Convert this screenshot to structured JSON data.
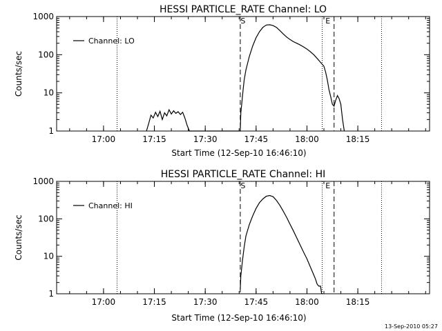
{
  "footer": {
    "timestamp": "13-Sep-2010 05:27"
  },
  "chart_data": [
    {
      "type": "line",
      "title": "HESSI PARTICLE_RATE Channel: LO",
      "xlabel": "Start Time (12-Sep-10 16:46:10)",
      "ylabel": "Counts/sec",
      "yscale": "log",
      "ylim": [
        1,
        1000
      ],
      "xlim_minutes_since_start": [
        0,
        110
      ],
      "xticks": [
        "17:00",
        "17:15",
        "17:30",
        "17:45",
        "18:00",
        "18:15"
      ],
      "yticks": [
        "1",
        "10",
        "100",
        "1000"
      ],
      "legend": {
        "label": "Channel: LO",
        "position": "top-left"
      },
      "markers": [
        {
          "label": "S",
          "time": "17:40:20",
          "style": "dashed"
        },
        {
          "label": "E",
          "time": "18:08:00",
          "style": "dashed"
        }
      ],
      "dotted_lines": [
        "17:04:00",
        "18:04:30",
        "18:22:00"
      ],
      "series": [
        {
          "name": "Channel: LO",
          "x": [
            "17:12:40",
            "17:13:20",
            "17:14:00",
            "17:14:40",
            "17:15:20",
            "17:16:00",
            "17:16:40",
            "17:17:20",
            "17:18:00",
            "17:18:40",
            "17:19:20",
            "17:20:00",
            "17:20:40",
            "17:21:20",
            "17:22:00",
            "17:22:40",
            "17:23:20",
            "17:24:00",
            "17:24:40",
            "17:25:20",
            "17:40:20",
            "17:40:30",
            "17:40:50",
            "17:41:10",
            "17:41:30",
            "17:42:00",
            "17:43:00",
            "17:44:00",
            "17:45:00",
            "17:46:00",
            "17:47:00",
            "17:48:00",
            "17:49:00",
            "17:50:00",
            "17:51:00",
            "17:52:00",
            "17:53:00",
            "17:54:00",
            "17:55:00",
            "17:56:00",
            "17:57:00",
            "17:58:00",
            "17:59:00",
            "18:00:00",
            "18:01:00",
            "18:02:00",
            "18:03:00",
            "18:04:00",
            "18:05:00",
            "18:05:30",
            "18:06:00",
            "18:06:30",
            "18:07:00",
            "18:07:30",
            "18:08:00",
            "18:08:30",
            "18:09:00",
            "18:09:30",
            "18:10:00",
            "18:10:30",
            "18:11:00"
          ],
          "y": [
            1,
            1.6,
            2.6,
            2.2,
            3.1,
            2.4,
            3.3,
            2.0,
            3.0,
            2.5,
            3.6,
            2.8,
            3.4,
            2.9,
            3.2,
            2.7,
            3.1,
            2.2,
            1.4,
            1,
            1,
            3,
            6,
            12,
            22,
            40,
            90,
            170,
            280,
            400,
            520,
            600,
            610,
            580,
            520,
            430,
            350,
            290,
            250,
            220,
            200,
            180,
            160,
            140,
            120,
            100,
            80,
            63,
            50,
            35,
            22,
            12,
            8,
            5,
            4.5,
            6.5,
            8.5,
            7,
            5,
            2,
            1
          ]
        }
      ]
    },
    {
      "type": "line",
      "title": "HESSI PARTICLE_RATE Channel: HI",
      "xlabel": "Start Time (12-Sep-10 16:46:10)",
      "ylabel": "Counts/sec",
      "yscale": "log",
      "ylim": [
        1,
        1000
      ],
      "xlim_minutes_since_start": [
        0,
        110
      ],
      "xticks": [
        "17:00",
        "17:15",
        "17:30",
        "17:45",
        "18:00",
        "18:15"
      ],
      "yticks": [
        "1",
        "10",
        "100",
        "1000"
      ],
      "legend": {
        "label": "Channel: HI",
        "position": "top-left"
      },
      "markers": [
        {
          "label": "S",
          "time": "17:40:20",
          "style": "dashed"
        },
        {
          "label": "E",
          "time": "18:08:00",
          "style": "dashed"
        }
      ],
      "dotted_lines": [
        "17:04:00",
        "18:04:30",
        "18:22:00"
      ],
      "series": [
        {
          "name": "Channel: HI",
          "x": [
            "17:40:20",
            "17:40:30",
            "17:41:00",
            "17:41:30",
            "17:42:00",
            "17:43:00",
            "17:44:00",
            "17:45:00",
            "17:46:00",
            "17:47:00",
            "17:48:00",
            "17:49:00",
            "17:50:00",
            "17:51:00",
            "17:52:00",
            "17:53:00",
            "17:54:00",
            "17:55:00",
            "17:56:00",
            "17:57:00",
            "17:58:00",
            "17:59:00",
            "18:00:00",
            "18:01:00",
            "18:02:00",
            "18:02:30",
            "18:03:00",
            "18:03:30",
            "18:04:00",
            "18:04:20"
          ],
          "y": [
            1.3,
            3,
            8,
            18,
            35,
            70,
            120,
            190,
            270,
            340,
            400,
            420,
            390,
            310,
            230,
            160,
            110,
            72,
            48,
            31,
            20,
            13,
            8.5,
            5.2,
            3.2,
            2.5,
            1.8,
            1.6,
            1.6,
            1
          ]
        }
      ]
    }
  ]
}
